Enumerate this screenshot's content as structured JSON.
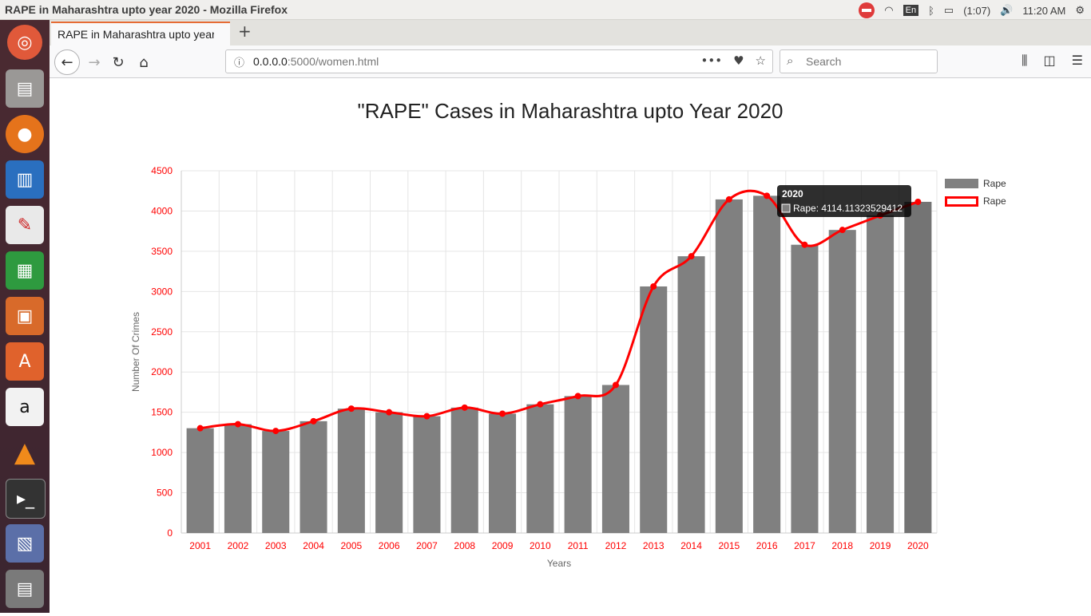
{
  "window_title": "RAPE in Maharashtra upto year 2020 - Mozilla Firefox",
  "system": {
    "language": "En",
    "battery": "(1:07)",
    "time": "11:20 AM"
  },
  "tab": {
    "label": "RAPE in Maharashtra upto year 2020"
  },
  "url": {
    "host": "0.0.0.0",
    "rest": ":5000/women.html"
  },
  "search": {
    "placeholder": "Search"
  },
  "colors": {
    "bar": "#808080",
    "line": "#ff0000",
    "tick": "#ff0000"
  },
  "chart_data": {
    "type": "bar",
    "title": "\"RAPE\" Cases in Maharashtra upto Year 2020",
    "xlabel": "Years",
    "ylabel": "Number Of Crimes",
    "ylim": [
      0,
      4500
    ],
    "yticks": [
      0,
      500,
      1000,
      1500,
      2000,
      2500,
      3000,
      3500,
      4000,
      4500
    ],
    "grid": true,
    "legend_position": "right",
    "categories": [
      "2001",
      "2002",
      "2003",
      "2004",
      "2005",
      "2006",
      "2007",
      "2008",
      "2009",
      "2010",
      "2011",
      "2012",
      "2013",
      "2014",
      "2015",
      "2016",
      "2017",
      "2018",
      "2019",
      "2020"
    ],
    "series": [
      {
        "name": "Rape",
        "kind": "bar",
        "values": [
          1302,
          1352,
          1268,
          1389,
          1545,
          1500,
          1451,
          1558,
          1482,
          1599,
          1701,
          1839,
          3063,
          3438,
          4144,
          4189,
          3581,
          3765,
          3944,
          4114
        ]
      },
      {
        "name": "Rape",
        "kind": "line",
        "values": [
          1302,
          1352,
          1268,
          1389,
          1545,
          1500,
          1451,
          1558,
          1482,
          1599,
          1701,
          1839,
          3063,
          3438,
          4144,
          4189,
          3581,
          3765,
          3944,
          4114
        ]
      }
    ],
    "tooltip": {
      "title": "2020",
      "label": "Rape: 4114.11323529412"
    }
  }
}
